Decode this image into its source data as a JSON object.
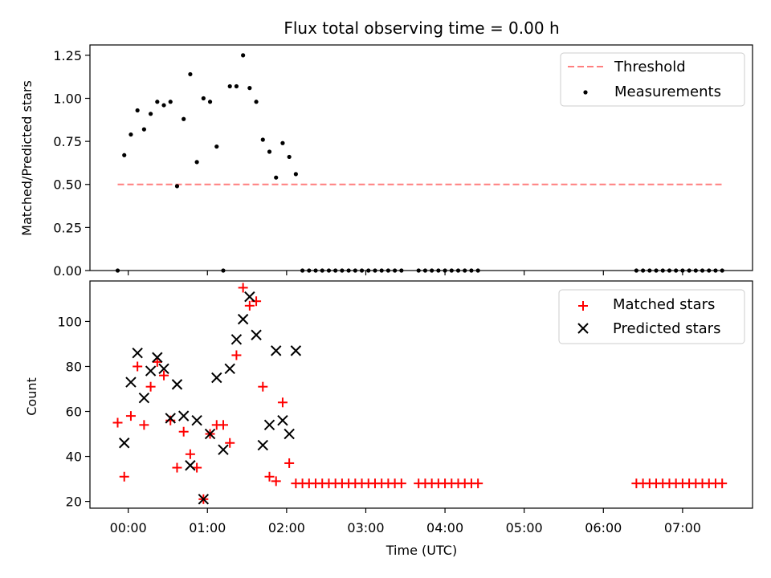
{
  "title": "Flux total observing time = 0.00 h",
  "colors": {
    "threshold": "#ff7f7f",
    "measurements": "#000000",
    "matched": "#ff0000",
    "predicted": "#000000"
  },
  "chart_data": [
    {
      "type": "scatter",
      "panel": "top",
      "ylabel": "Matched/Predicted stars",
      "xlabel": "",
      "ylim": [
        0,
        1.31
      ],
      "yticks": [
        0.0,
        0.25,
        0.5,
        0.75,
        1.0,
        1.25
      ],
      "ytick_labels": [
        "0.00",
        "0.25",
        "0.50",
        "0.75",
        "1.00",
        "1.25"
      ],
      "x_unit": "time (UTC)",
      "xlim": [
        "-00:29",
        "07:53"
      ],
      "legend_position": "top-right",
      "grid": false,
      "series": [
        {
          "name": "Threshold",
          "kind": "dashed-line",
          "x": [
            "-00:08",
            "07:30"
          ],
          "y": [
            0.5,
            0.5
          ]
        },
        {
          "name": "Measurements",
          "kind": "dots",
          "x": [
            "-00:08",
            "-00:03",
            "00:02",
            "00:07",
            "00:12",
            "00:17",
            "00:22",
            "00:27",
            "00:32",
            "00:37",
            "00:42",
            "00:47",
            "00:52",
            "00:57",
            "01:02",
            "01:07",
            "01:12",
            "01:17",
            "01:22",
            "01:27",
            "01:32",
            "01:37",
            "01:42",
            "01:47",
            "01:52",
            "01:57",
            "02:02",
            "02:07",
            "02:12",
            "02:17",
            "02:22",
            "02:27",
            "02:32",
            "02:37",
            "02:42",
            "02:47",
            "02:52",
            "02:57",
            "03:02",
            "03:07",
            "03:12",
            "03:17",
            "03:22",
            "03:27",
            "03:40",
            "03:45",
            "03:50",
            "03:55",
            "04:00",
            "04:05",
            "04:10",
            "04:15",
            "04:20",
            "04:25",
            "06:25",
            "06:30",
            "06:35",
            "06:40",
            "06:45",
            "06:50",
            "06:55",
            "07:00",
            "07:05",
            "07:10",
            "07:15",
            "07:20",
            "07:25",
            "07:30"
          ],
          "y": [
            0.0,
            0.67,
            0.79,
            0.93,
            0.82,
            0.91,
            0.98,
            0.96,
            0.98,
            0.49,
            0.88,
            1.14,
            0.63,
            1.0,
            0.98,
            0.72,
            0.0,
            1.07,
            1.07,
            1.25,
            1.06,
            0.98,
            0.76,
            0.69,
            0.54,
            0.74,
            0.66,
            0.56,
            0.0,
            0.0,
            0.0,
            0.0,
            0.0,
            0.0,
            0.0,
            0.0,
            0.0,
            0.0,
            0.0,
            0.0,
            0.0,
            0.0,
            0.0,
            0.0,
            0.0,
            0.0,
            0.0,
            0.0,
            0.0,
            0.0,
            0.0,
            0.0,
            0.0,
            0.0,
            0.0,
            0.0,
            0.0,
            0.0,
            0.0,
            0.0,
            0.0,
            0.0,
            0.0,
            0.0,
            0.0,
            0.0,
            0.0,
            0.0
          ]
        }
      ]
    },
    {
      "type": "scatter",
      "panel": "bottom",
      "ylabel": "Count",
      "xlabel": "Time (UTC)",
      "ylim": [
        17,
        118
      ],
      "yticks": [
        20,
        40,
        60,
        80,
        100
      ],
      "ytick_labels": [
        "20",
        "40",
        "60",
        "80",
        "100"
      ],
      "x_unit": "time (UTC)",
      "xlim": [
        "-00:29",
        "07:53"
      ],
      "xticks": [
        "00:00",
        "01:00",
        "02:00",
        "03:00",
        "04:00",
        "05:00",
        "06:00",
        "07:00"
      ],
      "xtick_labels": [
        "00:00",
        "01:00",
        "02:00",
        "03:00",
        "04:00",
        "05:00",
        "06:00",
        "07:00"
      ],
      "legend_position": "top-right",
      "grid": false,
      "series": [
        {
          "name": "Matched stars",
          "kind": "plus",
          "x": [
            "-00:08",
            "-00:03",
            "00:02",
            "00:07",
            "00:12",
            "00:17",
            "00:22",
            "00:27",
            "00:32",
            "00:37",
            "00:42",
            "00:47",
            "00:52",
            "00:57",
            "01:02",
            "01:07",
            "01:12",
            "01:17",
            "01:22",
            "01:27",
            "01:32",
            "01:37",
            "01:42",
            "01:47",
            "01:52",
            "01:57",
            "02:02",
            "02:07",
            "02:12",
            "02:17",
            "02:22",
            "02:27",
            "02:32",
            "02:37",
            "02:42",
            "02:47",
            "02:52",
            "02:57",
            "03:02",
            "03:07",
            "03:12",
            "03:17",
            "03:22",
            "03:27",
            "03:40",
            "03:45",
            "03:50",
            "03:55",
            "04:00",
            "04:05",
            "04:10",
            "04:15",
            "04:20",
            "04:25",
            "06:25",
            "06:30",
            "06:35",
            "06:40",
            "06:45",
            "06:50",
            "06:55",
            "07:00",
            "07:05",
            "07:10",
            "07:15",
            "07:20",
            "07:25",
            "07:30"
          ],
          "y": [
            55,
            31,
            58,
            80,
            54,
            71,
            82,
            76,
            56,
            35,
            51,
            41,
            35,
            21,
            50,
            54,
            54,
            46,
            85,
            115,
            107,
            109,
            71,
            31,
            29,
            64,
            37,
            28,
            28,
            28,
            28,
            28,
            28,
            28,
            28,
            28,
            28,
            28,
            28,
            28,
            28,
            28,
            28,
            28,
            28,
            28,
            28,
            28,
            28,
            28,
            28,
            28,
            28,
            28,
            28,
            28,
            28,
            28,
            28,
            28,
            28,
            28,
            28,
            28,
            28,
            28,
            28,
            28
          ]
        },
        {
          "name": "Predicted stars",
          "kind": "x",
          "x": [
            "-00:03",
            "00:02",
            "00:07",
            "00:12",
            "00:17",
            "00:22",
            "00:27",
            "00:32",
            "00:37",
            "00:42",
            "00:47",
            "00:52",
            "00:57",
            "01:02",
            "01:07",
            "01:12",
            "01:17",
            "01:22",
            "01:27",
            "01:32",
            "01:37",
            "01:42",
            "01:47",
            "01:52",
            "01:57",
            "02:02",
            "02:07"
          ],
          "y": [
            46,
            73,
            86,
            66,
            78,
            84,
            79,
            57,
            72,
            58,
            36,
            56,
            21,
            50,
            75,
            43,
            79,
            92,
            101,
            111,
            94,
            45,
            54,
            87,
            56,
            50,
            87
          ]
        }
      ]
    }
  ]
}
